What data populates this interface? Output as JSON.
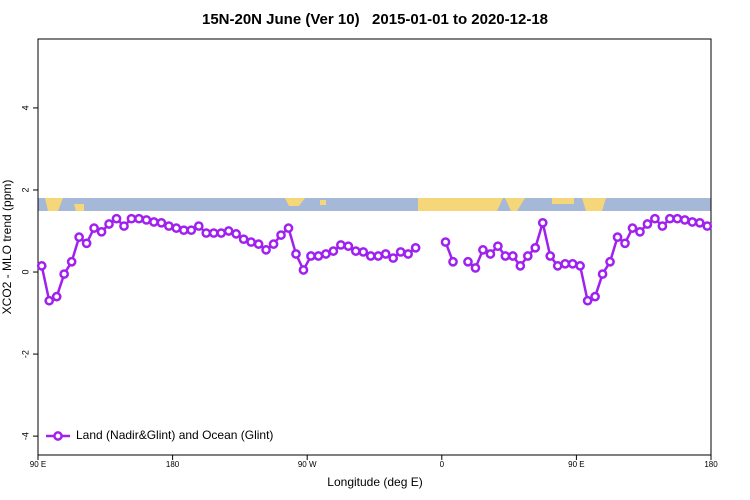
{
  "chart_data": {
    "type": "line",
    "title": "15N-20N June (Ver 10)   2015-01-01 to 2020-12-18",
    "x_label": "Longitude (deg E)",
    "y_label": "XCO2 - MLO trend (ppm)",
    "x": [
      92.5,
      97.5,
      102.5,
      107.5,
      112.5,
      117.5,
      122.5,
      127.5,
      132.5,
      137.5,
      142.5,
      147.5,
      152.5,
      157.5,
      162.5,
      167.5,
      172.5,
      177.5,
      182.5,
      187.5,
      192.5,
      197.5,
      202.5,
      207.5,
      212.5,
      217.5,
      222.5,
      227.5,
      232.5,
      237.5,
      242.5,
      247.5,
      252.5,
      257.5,
      262.5,
      267.5,
      272.5,
      277.5,
      282.5,
      287.5,
      292.5,
      297.5,
      302.5,
      307.5,
      312.5,
      317.5,
      322.5,
      327.5,
      332.5,
      337.5,
      342.5,
      347.5,
      352.5,
      357.5,
      362.5,
      367.5,
      372.5,
      377.5,
      382.5,
      387.5,
      392.5,
      397.5,
      402.5,
      407.5,
      412.5,
      417.5,
      422.5,
      427.5,
      432.5,
      437.5,
      442.5,
      447.5,
      452.5,
      457.5,
      462.5,
      467.5,
      472.5,
      477.5,
      482.5,
      487.5,
      492.5,
      497.5,
      502.5,
      507.5,
      512.5,
      517.5,
      522.5,
      527.5,
      532.5,
      537.5
    ],
    "series": [
      {
        "name": "Land (Nadir&Glint) and Ocean (Glint)",
        "color": "#a020f0",
        "values": [
          0.15,
          -0.7,
          -0.6,
          -0.05,
          0.25,
          0.85,
          0.7,
          1.07,
          0.98,
          1.17,
          1.3,
          1.12,
          1.3,
          1.3,
          1.27,
          1.22,
          1.2,
          1.12,
          1.07,
          1.02,
          1.02,
          1.12,
          0.95,
          0.95,
          0.95,
          1.0,
          0.93,
          0.8,
          0.73,
          0.68,
          0.54,
          0.68,
          0.9,
          1.07,
          0.44,
          0.05,
          0.39,
          0.39,
          0.44,
          0.51,
          0.66,
          0.63,
          0.51,
          0.49,
          0.39,
          0.39,
          0.44,
          0.34,
          0.49,
          0.44,
          0.59,
          null,
          null,
          null,
          0.73,
          0.25,
          null,
          0.25,
          0.1,
          0.54,
          0.44,
          0.63,
          0.39,
          0.39,
          0.15,
          0.39,
          0.59,
          1.2,
          0.39,
          0.15,
          0.2,
          0.2,
          0.15,
          -0.7,
          -0.6,
          -0.05,
          0.25,
          0.85,
          0.7,
          1.07,
          0.98,
          1.17,
          1.3,
          1.12,
          1.3,
          1.3,
          1.27,
          1.22,
          1.2,
          1.12
        ]
      }
    ],
    "xlim": [
      90,
      540
    ],
    "xticks": [
      {
        "value": 90,
        "label": "90 E"
      },
      {
        "value": 180,
        "label": "180"
      },
      {
        "value": 270,
        "label": "90 W"
      },
      {
        "value": 360,
        "label": "0"
      },
      {
        "value": 450,
        "label": "90 E"
      },
      {
        "value": 540,
        "label": "180"
      }
    ],
    "ylim": [
      -4.46,
      5.68
    ],
    "yticks": [
      -4,
      -2,
      0,
      2,
      4
    ],
    "legend_position": "bottom-left"
  }
}
